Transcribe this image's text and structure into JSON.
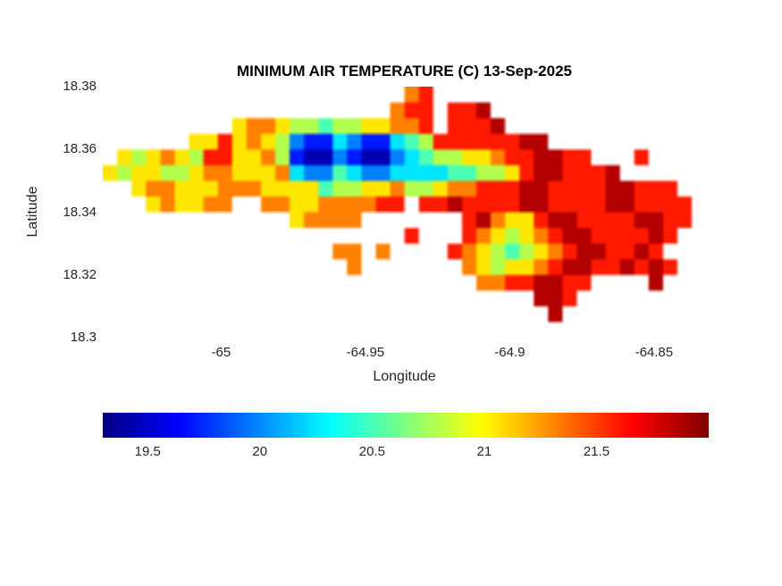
{
  "chart_data": {
    "type": "heatmap",
    "title": "MINIMUM AIR TEMPERATURE (C) 13-Sep-2025",
    "xlabel": "Longitude",
    "ylabel": "Latitude",
    "xlim": [
      -65.041,
      -64.832
    ],
    "ylim": [
      18.3,
      18.38
    ],
    "grid_on": false,
    "xticks": [
      {
        "v": -65,
        "label": "-65"
      },
      {
        "v": -64.95,
        "label": "-64.95"
      },
      {
        "v": -64.9,
        "label": "-64.9"
      },
      {
        "v": -64.85,
        "label": "-64.85"
      }
    ],
    "yticks": [
      {
        "v": 18.38,
        "label": "18.38"
      },
      {
        "v": 18.36,
        "label": "18.36"
      },
      {
        "v": 18.34,
        "label": "18.34"
      },
      {
        "v": 18.32,
        "label": "18.32"
      },
      {
        "v": 18.3,
        "label": "18.3"
      }
    ],
    "colorbar": {
      "min": 19.3,
      "max": 22.0,
      "orientation": "horizontal",
      "ticks": [
        {
          "v": 19.5,
          "label": "19.5"
        },
        {
          "v": 20,
          "label": "20"
        },
        {
          "v": 20.5,
          "label": "20.5"
        },
        {
          "v": 21,
          "label": "21"
        },
        {
          "v": 21.5,
          "label": "21.5"
        }
      ],
      "colormap": [
        {
          "pos": 0,
          "color": "#000080"
        },
        {
          "pos": 0.125,
          "color": "#0000ff"
        },
        {
          "pos": 0.375,
          "color": "#00ffff"
        },
        {
          "pos": 0.625,
          "color": "#ffff00"
        },
        {
          "pos": 0.875,
          "color": "#ff0000"
        },
        {
          "pos": 1,
          "color": "#800000"
        }
      ]
    },
    "grid": {
      "cols": 42,
      "rows": 16,
      "cell_deg": 0.005,
      "legend": "each char = one 0.005-deg cell; '.' = ocean/no data; digits 0-9 = binned minimum air temperature level on jet colormap",
      "level_temps_c": [
        19.4,
        19.7,
        20.0,
        20.2,
        20.5,
        20.8,
        21.1,
        21.3,
        21.6,
        21.9
      ],
      "palette": {
        "0": "#0000b3",
        "1": "#001aff",
        "2": "#0080ff",
        "3": "#00e6ff",
        "4": "#4dffb3",
        "5": "#b3ff4d",
        "6": "#ffe600",
        "7": "#ff8000",
        "8": "#ff1a00",
        "9": "#b30000"
      },
      "rows_data": [
        ".....................78...................",
        "....................788.889...............",
        ".........67765545566778.8889..............",
        "......6686765211321134588888899...........",
        ".656765886675100210023455667889988...8....",
        "656655677666732243223333445568998889......",
        "..67766677766664556675567788899888899888..",
        "...676677..7766777788.8898888998888998888.",
        ".............67777.......8976689988889988.",
        ".....................8...876567899888898..",
        "................77.7....876545678998898...",
        ".................7.......765667899889898..",
        "..........................77889988....9...",
        "..............................998.........",
        "...............................9..........",
        ".........................................."
      ]
    }
  }
}
